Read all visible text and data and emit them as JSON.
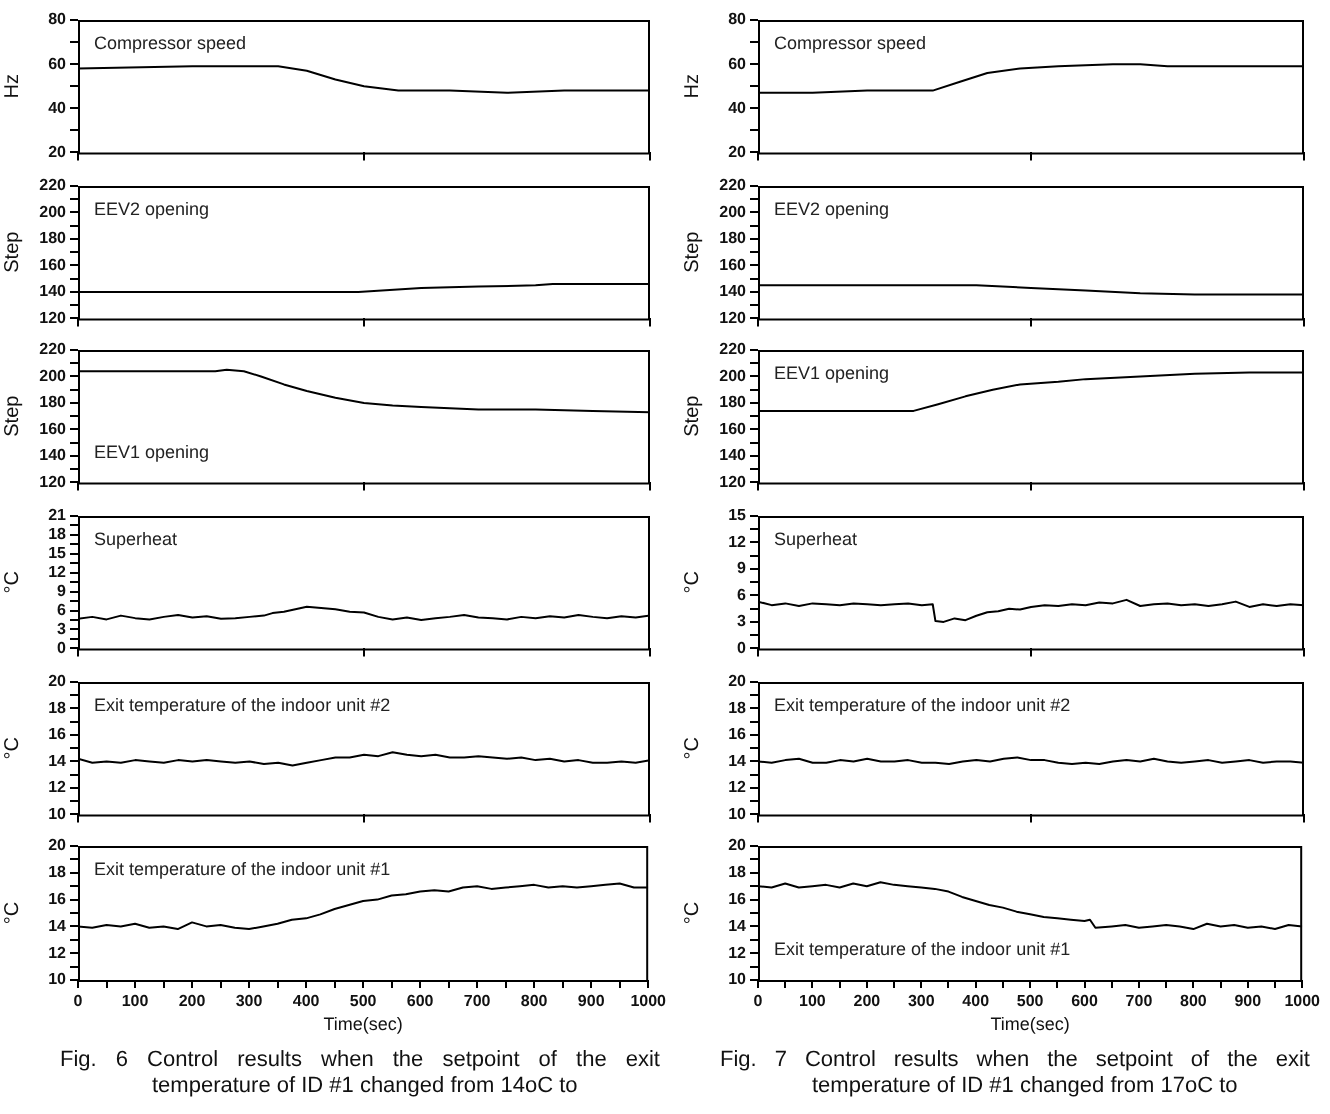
{
  "chart_data": [
    {
      "type": "line",
      "ylabel": "Hz",
      "annotations": [
        "Compressor speed"
      ],
      "x": [
        0,
        200,
        300,
        350,
        400,
        450,
        500,
        560,
        650,
        750,
        850,
        1000
      ],
      "series": [
        {
          "color": "#000000",
          "values": [
            58,
            59,
            59,
            59,
            57,
            53,
            50,
            48,
            48,
            47,
            48,
            48
          ]
        }
      ],
      "xlim": [
        0,
        1000
      ],
      "xticks": [
        {
          "value": 0,
          "label": null
        },
        {
          "value": 500,
          "label": null
        },
        {
          "value": 1000,
          "label": null
        }
      ],
      "ylim": [
        20,
        80
      ],
      "yticks": [
        20,
        {
          "value": 30,
          "label": null
        },
        40,
        {
          "value": 50,
          "label": null
        },
        60,
        {
          "value": 70,
          "label": null
        },
        80
      ],
      "tick_labels": "y"
    },
    {
      "type": "line",
      "ylabel": "Step",
      "annotations": [
        "EEV2 opening"
      ],
      "x": [
        0,
        490,
        600,
        700,
        800,
        830,
        1000
      ],
      "series": [
        {
          "color": "#000000",
          "values": [
            140,
            140,
            143,
            144,
            145,
            146,
            146
          ]
        }
      ],
      "xlim": [
        0,
        1000
      ],
      "xticks": [
        {
          "value": 0,
          "label": null
        },
        {
          "value": 500,
          "label": null
        },
        {
          "value": 1000,
          "label": null
        }
      ],
      "ylim": [
        120,
        220
      ],
      "yticks": [
        120,
        {
          "value": 130,
          "label": null
        },
        140,
        {
          "value": 150,
          "label": null
        },
        160,
        {
          "value": 170,
          "label": null
        },
        180,
        {
          "value": 190,
          "label": null
        },
        200,
        {
          "value": 210,
          "label": null
        },
        220
      ],
      "tick_labels": "y"
    },
    {
      "type": "line",
      "ylabel": "Step",
      "annotations": [
        "EEV1 opening"
      ],
      "x": [
        0,
        240,
        260,
        290,
        320,
        360,
        400,
        450,
        500,
        550,
        600,
        650,
        700,
        800,
        900,
        1000
      ],
      "series": [
        {
          "color": "#000000",
          "values": [
            204,
            204,
            205,
            204,
            200,
            194,
            189,
            184,
            180,
            178,
            177,
            176,
            175,
            175,
            174,
            173
          ]
        }
      ],
      "xlim": [
        0,
        1000
      ],
      "xticks": [
        {
          "value": 0,
          "label": null
        },
        {
          "value": 500,
          "label": null
        },
        {
          "value": 1000,
          "label": null
        }
      ],
      "ylim": [
        120,
        220
      ],
      "yticks": [
        120,
        {
          "value": 130,
          "label": null
        },
        140,
        {
          "value": 150,
          "label": null
        },
        160,
        {
          "value": 170,
          "label": null
        },
        180,
        {
          "value": 190,
          "label": null
        },
        200,
        {
          "value": 210,
          "label": null
        },
        220
      ],
      "tick_labels": "y"
    },
    {
      "type": "line",
      "ylabel": "°C",
      "annotations": [
        "Superheat"
      ],
      "x": [
        0,
        25,
        50,
        75,
        100,
        125,
        150,
        175,
        200,
        225,
        250,
        275,
        300,
        325,
        340,
        360,
        380,
        400,
        425,
        450,
        475,
        500,
        525,
        550,
        575,
        600,
        625,
        650,
        675,
        700,
        725,
        750,
        775,
        800,
        825,
        850,
        875,
        900,
        925,
        950,
        975,
        1000
      ],
      "series": [
        {
          "color": "#000000",
          "values": [
            4.7,
            5.0,
            4.6,
            5.2,
            4.8,
            4.6,
            5.0,
            5.3,
            4.9,
            5.1,
            4.7,
            4.8,
            5.0,
            5.2,
            5.6,
            5.8,
            6.2,
            6.6,
            6.4,
            6.2,
            5.8,
            5.7,
            5.0,
            4.6,
            4.9,
            4.5,
            4.8,
            5.0,
            5.3,
            4.9,
            4.8,
            4.6,
            5.0,
            4.8,
            5.1,
            4.9,
            5.3,
            5.0,
            4.8,
            5.1,
            4.9,
            5.2
          ]
        }
      ],
      "xlim": [
        0,
        1000
      ],
      "xticks": [
        {
          "value": 0,
          "label": null
        },
        {
          "value": 500,
          "label": null
        },
        {
          "value": 1000,
          "label": null
        }
      ],
      "ylim": [
        0,
        21
      ],
      "yticks": [
        0,
        {
          "value": 1.5,
          "label": null
        },
        3,
        {
          "value": 4.5,
          "label": null
        },
        6,
        {
          "value": 7.5,
          "label": null
        },
        9,
        {
          "value": 10.5,
          "label": null
        },
        12,
        {
          "value": 13.5,
          "label": null
        },
        15,
        {
          "value": 16.5,
          "label": null
        },
        18,
        {
          "value": 19.5,
          "label": null
        },
        21
      ],
      "tick_labels": "y"
    },
    {
      "type": "line",
      "ylabel": "°C",
      "annotations": [
        "Exit temperature of the indoor unit #2"
      ],
      "x": [
        0,
        25,
        50,
        75,
        100,
        125,
        150,
        175,
        200,
        225,
        250,
        275,
        300,
        325,
        350,
        375,
        400,
        425,
        450,
        475,
        500,
        525,
        550,
        575,
        600,
        625,
        650,
        675,
        700,
        725,
        750,
        775,
        800,
        825,
        850,
        875,
        900,
        925,
        950,
        975,
        1000
      ],
      "series": [
        {
          "color": "#000000",
          "values": [
            14.2,
            13.9,
            14.0,
            13.9,
            14.1,
            14.0,
            13.9,
            14.1,
            14.0,
            14.1,
            14.0,
            13.9,
            14.0,
            13.8,
            13.9,
            13.7,
            13.9,
            14.1,
            14.3,
            14.3,
            14.5,
            14.4,
            14.7,
            14.5,
            14.4,
            14.5,
            14.3,
            14.3,
            14.4,
            14.3,
            14.2,
            14.3,
            14.1,
            14.2,
            14.0,
            14.1,
            13.9,
            13.9,
            14.0,
            13.9,
            14.1
          ]
        }
      ],
      "xlim": [
        0,
        1000
      ],
      "xticks": [
        {
          "value": 0,
          "label": null
        },
        {
          "value": 500,
          "label": null
        },
        {
          "value": 1000,
          "label": null
        }
      ],
      "ylim": [
        10,
        20
      ],
      "yticks": [
        10,
        {
          "value": 11,
          "label": null
        },
        12,
        {
          "value": 13,
          "label": null
        },
        14,
        {
          "value": 15,
          "label": null
        },
        16,
        {
          "value": 17,
          "label": null
        },
        18,
        {
          "value": 19,
          "label": null
        },
        20
      ],
      "tick_labels": "y"
    },
    {
      "type": "line",
      "ylabel": "°C",
      "xlabel": "Time(sec)",
      "annotations": [
        "Exit temperature of the indoor unit #1",
        "Fig. 6 Control results when the setpoint of the exit temperature of ID #1 changed from 14oC to"
      ],
      "x": [
        0,
        25,
        50,
        75,
        100,
        125,
        150,
        175,
        200,
        225,
        250,
        275,
        300,
        325,
        350,
        375,
        400,
        425,
        450,
        475,
        500,
        525,
        550,
        575,
        600,
        625,
        650,
        675,
        700,
        725,
        750,
        775,
        800,
        825,
        850,
        875,
        900,
        925,
        950,
        975,
        1000
      ],
      "series": [
        {
          "color": "#000000",
          "values": [
            14.0,
            13.9,
            14.1,
            14.0,
            14.2,
            13.9,
            14.0,
            13.8,
            14.3,
            14.0,
            14.1,
            13.9,
            13.8,
            14.0,
            14.2,
            14.5,
            14.6,
            14.9,
            15.3,
            15.6,
            15.9,
            16.0,
            16.3,
            16.4,
            16.6,
            16.7,
            16.6,
            16.9,
            17.0,
            16.8,
            16.9,
            17.0,
            17.1,
            16.9,
            17.0,
            16.9,
            17.0,
            17.1,
            17.2,
            16.9,
            16.9
          ]
        }
      ],
      "xlim": [
        0,
        1000
      ],
      "xticks": [
        0,
        {
          "value": 50,
          "label": null
        },
        100,
        {
          "value": 150,
          "label": null
        },
        200,
        {
          "value": 250,
          "label": null
        },
        300,
        {
          "value": 350,
          "label": null
        },
        400,
        {
          "value": 450,
          "label": null
        },
        500,
        {
          "value": 550,
          "label": null
        },
        600,
        {
          "value": 650,
          "label": null
        },
        700,
        {
          "value": 750,
          "label": null
        },
        800,
        {
          "value": 850,
          "label": null
        },
        900,
        {
          "value": 950,
          "label": null
        },
        1000
      ],
      "ylim": [
        10,
        20
      ],
      "yticks": [
        10,
        {
          "value": 11,
          "label": null
        },
        12,
        {
          "value": 13,
          "label": null
        },
        14,
        {
          "value": 15,
          "label": null
        },
        16,
        {
          "value": 17,
          "label": null
        },
        18,
        {
          "value": 19,
          "label": null
        },
        20
      ]
    },
    {
      "type": "line",
      "ylabel": "Hz",
      "annotations": [
        "Compressor speed"
      ],
      "x": [
        0,
        100,
        200,
        300,
        320,
        370,
        420,
        480,
        550,
        650,
        700,
        750,
        800,
        900,
        1000
      ],
      "series": [
        {
          "color": "#000000",
          "values": [
            47,
            47,
            48,
            48,
            48,
            52,
            56,
            58,
            59,
            60,
            60,
            59,
            59,
            59,
            59
          ]
        }
      ],
      "xlim": [
        0,
        1000
      ],
      "xticks": [
        {
          "value": 0,
          "label": null
        },
        {
          "value": 500,
          "label": null
        },
        {
          "value": 1000,
          "label": null
        }
      ],
      "ylim": [
        20,
        80
      ],
      "yticks": [
        20,
        {
          "value": 30,
          "label": null
        },
        40,
        {
          "value": 50,
          "label": null
        },
        60,
        {
          "value": 70,
          "label": null
        },
        80
      ],
      "tick_labels": "y"
    },
    {
      "type": "line",
      "ylabel": "Step",
      "annotations": [
        "EEV2 opening"
      ],
      "x": [
        0,
        400,
        500,
        600,
        700,
        800,
        850,
        1000
      ],
      "series": [
        {
          "color": "#000000",
          "values": [
            145,
            145,
            143,
            141,
            139,
            138,
            138,
            138
          ]
        }
      ],
      "xlim": [
        0,
        1000
      ],
      "xticks": [
        {
          "value": 0,
          "label": null
        },
        {
          "value": 500,
          "label": null
        },
        {
          "value": 1000,
          "label": null
        }
      ],
      "ylim": [
        120,
        220
      ],
      "yticks": [
        120,
        {
          "value": 130,
          "label": null
        },
        140,
        {
          "value": 150,
          "label": null
        },
        160,
        {
          "value": 170,
          "label": null
        },
        180,
        {
          "value": 190,
          "label": null
        },
        200,
        {
          "value": 210,
          "label": null
        },
        220
      ],
      "tick_labels": "y"
    },
    {
      "type": "line",
      "ylabel": "Step",
      "annotations": [
        "EEV1 opening"
      ],
      "x": [
        0,
        285,
        330,
        380,
        430,
        480,
        550,
        600,
        700,
        800,
        900,
        1000
      ],
      "series": [
        {
          "color": "#000000",
          "values": [
            174,
            174,
            179,
            185,
            190,
            194,
            196,
            198,
            200,
            202,
            203,
            203
          ]
        }
      ],
      "xlim": [
        0,
        1000
      ],
      "xticks": [
        {
          "value": 0,
          "label": null
        },
        {
          "value": 500,
          "label": null
        },
        {
          "value": 1000,
          "label": null
        }
      ],
      "ylim": [
        120,
        220
      ],
      "yticks": [
        120,
        {
          "value": 130,
          "label": null
        },
        140,
        {
          "value": 150,
          "label": null
        },
        160,
        {
          "value": 170,
          "label": null
        },
        180,
        {
          "value": 190,
          "label": null
        },
        200,
        {
          "value": 210,
          "label": null
        },
        220
      ],
      "tick_labels": "y"
    },
    {
      "type": "line",
      "ylabel": "°C",
      "annotations": [
        "Superheat"
      ],
      "x": [
        0,
        25,
        50,
        75,
        100,
        125,
        150,
        175,
        200,
        225,
        250,
        275,
        300,
        320,
        325,
        340,
        360,
        380,
        400,
        420,
        440,
        460,
        480,
        500,
        525,
        550,
        575,
        600,
        625,
        650,
        675,
        700,
        725,
        750,
        775,
        800,
        825,
        850,
        875,
        900,
        925,
        950,
        975,
        1000
      ],
      "series": [
        {
          "color": "#000000",
          "values": [
            5.3,
            4.9,
            5.1,
            4.8,
            5.1,
            5.0,
            4.9,
            5.1,
            5.0,
            4.9,
            5.0,
            5.1,
            4.9,
            5.0,
            3.1,
            3.0,
            3.4,
            3.2,
            3.7,
            4.1,
            4.2,
            4.5,
            4.4,
            4.7,
            4.9,
            4.8,
            5.0,
            4.9,
            5.2,
            5.1,
            5.5,
            4.8,
            5.0,
            5.1,
            4.9,
            5.0,
            4.8,
            5.0,
            5.3,
            4.7,
            5.0,
            4.8,
            5.0,
            4.9
          ]
        }
      ],
      "xlim": [
        0,
        1000
      ],
      "xticks": [
        {
          "value": 0,
          "label": null
        },
        {
          "value": 500,
          "label": null
        },
        {
          "value": 1000,
          "label": null
        }
      ],
      "ylim": [
        0,
        15
      ],
      "yticks": [
        0,
        {
          "value": 1.5,
          "label": null
        },
        3,
        {
          "value": 4.5,
          "label": null
        },
        6,
        {
          "value": 7.5,
          "label": null
        },
        9,
        {
          "value": 10.5,
          "label": null
        },
        12,
        {
          "value": 13.5,
          "label": null
        },
        15
      ],
      "tick_labels": "y"
    },
    {
      "type": "line",
      "ylabel": "°C",
      "annotations": [
        "Exit temperature of the indoor unit #2"
      ],
      "x": [
        0,
        25,
        50,
        75,
        100,
        125,
        150,
        175,
        200,
        225,
        250,
        275,
        300,
        325,
        350,
        375,
        400,
        425,
        450,
        475,
        500,
        525,
        550,
        575,
        600,
        625,
        650,
        675,
        700,
        725,
        750,
        775,
        800,
        825,
        850,
        875,
        900,
        925,
        950,
        975,
        1000
      ],
      "series": [
        {
          "color": "#000000",
          "values": [
            14.0,
            13.9,
            14.1,
            14.2,
            13.9,
            13.9,
            14.1,
            14.0,
            14.2,
            14.0,
            14.0,
            14.1,
            13.9,
            13.9,
            13.8,
            14.0,
            14.1,
            14.0,
            14.2,
            14.3,
            14.1,
            14.1,
            13.9,
            13.8,
            13.9,
            13.8,
            14.0,
            14.1,
            14.0,
            14.2,
            14.0,
            13.9,
            14.0,
            14.1,
            13.9,
            14.0,
            14.1,
            13.9,
            14.0,
            14.0,
            13.9
          ]
        }
      ],
      "xlim": [
        0,
        1000
      ],
      "xticks": [
        {
          "value": 0,
          "label": null
        },
        {
          "value": 500,
          "label": null
        },
        {
          "value": 1000,
          "label": null
        }
      ],
      "ylim": [
        10,
        20
      ],
      "yticks": [
        10,
        {
          "value": 11,
          "label": null
        },
        12,
        {
          "value": 13,
          "label": null
        },
        14,
        {
          "value": 15,
          "label": null
        },
        16,
        {
          "value": 17,
          "label": null
        },
        18,
        {
          "value": 19,
          "label": null
        },
        20
      ],
      "tick_labels": "y"
    },
    {
      "type": "line",
      "ylabel": "°C",
      "xlabel": "Time(sec)",
      "annotations": [
        "Exit temperature of the indoor unit #1",
        "Fig. 7 Control results when the setpoint of the exit temperature of ID #1 changed from 17oC to"
      ],
      "x": [
        0,
        25,
        50,
        75,
        100,
        125,
        150,
        175,
        200,
        225,
        250,
        275,
        300,
        325,
        350,
        375,
        400,
        425,
        450,
        475,
        500,
        525,
        550,
        575,
        600,
        610,
        620,
        650,
        675,
        700,
        725,
        750,
        775,
        800,
        825,
        850,
        875,
        900,
        925,
        950,
        975,
        1000
      ],
      "series": [
        {
          "color": "#000000",
          "values": [
            17.0,
            16.9,
            17.2,
            16.9,
            17.0,
            17.1,
            16.9,
            17.2,
            17.0,
            17.3,
            17.1,
            17.0,
            16.9,
            16.8,
            16.6,
            16.2,
            15.9,
            15.6,
            15.4,
            15.1,
            14.9,
            14.7,
            14.6,
            14.5,
            14.4,
            14.5,
            13.9,
            14.0,
            14.1,
            13.9,
            14.0,
            14.1,
            14.0,
            13.8,
            14.2,
            14.0,
            14.1,
            13.9,
            14.0,
            13.8,
            14.1,
            14.0
          ]
        }
      ],
      "xlim": [
        0,
        1000
      ],
      "xticks": [
        0,
        {
          "value": 50,
          "label": null
        },
        100,
        {
          "value": 150,
          "label": null
        },
        200,
        {
          "value": 250,
          "label": null
        },
        300,
        {
          "value": 350,
          "label": null
        },
        400,
        {
          "value": 450,
          "label": null
        },
        500,
        {
          "value": 550,
          "label": null
        },
        600,
        {
          "value": 650,
          "label": null
        },
        700,
        {
          "value": 750,
          "label": null
        },
        800,
        {
          "value": 850,
          "label": null
        },
        900,
        {
          "value": 950,
          "label": null
        },
        1000
      ],
      "ylim": [
        10,
        20
      ],
      "yticks": [
        10,
        {
          "value": 11,
          "label": null
        },
        12,
        {
          "value": 13,
          "label": null
        },
        14,
        {
          "value": 15,
          "label": null
        },
        16,
        {
          "value": 17,
          "label": null
        },
        18,
        {
          "value": 19,
          "label": null
        },
        20
      ]
    }
  ]
}
